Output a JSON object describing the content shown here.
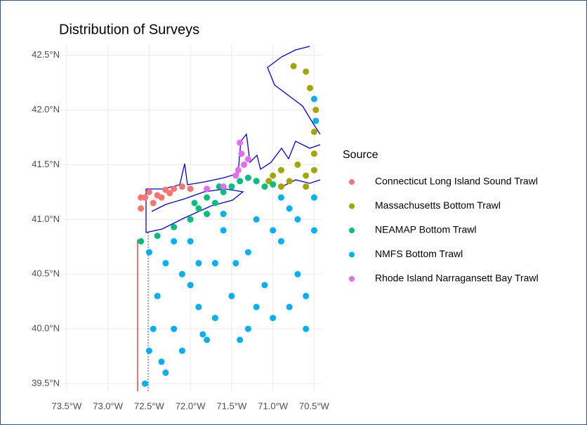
{
  "chart_data": {
    "type": "scatter",
    "title": "Distribution of Surveys",
    "legend_title": "Source",
    "legend": "right",
    "grid": true,
    "xlim": [
      -73.55,
      -70.41
    ],
    "ylim": [
      39.43,
      42.6
    ],
    "xticks": [
      {
        "value": -73.5,
        "label": "73.5°W"
      },
      {
        "value": -73.0,
        "label": "73.0°W"
      },
      {
        "value": -72.5,
        "label": "72.5°W"
      },
      {
        "value": -72.0,
        "label": "72.0°W"
      },
      {
        "value": -71.5,
        "label": "71.5°W"
      },
      {
        "value": -71.0,
        "label": "71.0°W"
      },
      {
        "value": -70.5,
        "label": "70.5°W"
      }
    ],
    "yticks": [
      {
        "value": 39.5,
        "label": "39.5°N"
      },
      {
        "value": 40.0,
        "label": "40.0°N"
      },
      {
        "value": 40.5,
        "label": "40.5°N"
      },
      {
        "value": 41.0,
        "label": "41.0°N"
      },
      {
        "value": 41.5,
        "label": "41.5°N"
      },
      {
        "value": 42.0,
        "label": "42.0°N"
      },
      {
        "value": 42.5,
        "label": "42.5°N"
      }
    ],
    "series": [
      {
        "name": "Connecticut Long Island Sound Trawl",
        "color": "#F8766D",
        "x": [
          -72.6,
          -72.55,
          -72.5,
          -72.4,
          -72.3,
          -72.2,
          -72.1,
          -72.0,
          -72.45,
          -72.35,
          -72.6,
          -72.25
        ],
        "y": [
          41.1,
          41.2,
          41.25,
          41.22,
          41.27,
          41.28,
          41.3,
          41.28,
          41.15,
          41.2,
          41.2,
          41.24
        ]
      },
      {
        "name": "Massachusetts Bottom Trawl",
        "color": "#A3A500",
        "x": [
          -71.0,
          -70.9,
          -70.8,
          -70.7,
          -70.6,
          -70.5,
          -70.5,
          -70.48,
          -70.55,
          -70.6,
          -70.75,
          -70.9,
          -70.6,
          -71.05,
          -70.5
        ],
        "y": [
          41.4,
          41.45,
          41.35,
          41.5,
          41.4,
          41.6,
          41.8,
          42.0,
          42.2,
          42.35,
          42.4,
          41.3,
          41.3,
          41.35,
          41.45
        ]
      },
      {
        "name": "NEAMAP Bottom Trawl",
        "color": "#00BF7D",
        "x": [
          -72.6,
          -72.4,
          -72.2,
          -72.0,
          -71.8,
          -71.95,
          -71.8,
          -71.7,
          -71.6,
          -71.5,
          -71.4,
          -71.3,
          -71.2,
          -71.1,
          -71.0,
          -71.9,
          -71.65
        ],
        "y": [
          40.8,
          40.85,
          40.93,
          41.0,
          41.05,
          41.15,
          41.2,
          41.15,
          41.25,
          41.3,
          41.35,
          41.38,
          41.35,
          41.3,
          41.32,
          41.1,
          41.3
        ]
      },
      {
        "name": "NMFS Bottom Trawl",
        "color": "#00B0F6",
        "x": [
          -72.5,
          -72.4,
          -72.5,
          -72.55,
          -72.3,
          -72.2,
          -72.1,
          -72.0,
          -71.9,
          -71.8,
          -71.7,
          -71.6,
          -71.5,
          -71.4,
          -71.3,
          -71.2,
          -71.1,
          -71.0,
          -70.9,
          -70.8,
          -70.7,
          -70.6,
          -70.5,
          -70.5,
          -70.48,
          -70.5,
          -70.6,
          -70.8,
          -71.0,
          -71.2,
          -71.45,
          -71.7,
          -72.0,
          -72.3,
          -72.45,
          -72.35,
          -72.1,
          -71.9,
          -71.3,
          -70.9,
          -71.6,
          -72.2,
          -70.7,
          -71.85
        ],
        "y": [
          40.7,
          40.3,
          39.8,
          39.5,
          39.6,
          40.0,
          40.5,
          40.8,
          40.2,
          39.9,
          40.6,
          40.9,
          40.3,
          39.9,
          40.7,
          41.0,
          40.4,
          40.1,
          40.8,
          41.1,
          40.5,
          40.0,
          40.9,
          41.2,
          41.9,
          42.1,
          40.3,
          40.2,
          40.9,
          40.2,
          40.6,
          40.1,
          40.4,
          40.6,
          40.0,
          39.7,
          39.8,
          40.6,
          40.0,
          41.2,
          41.05,
          40.8,
          41.0,
          39.95
        ]
      },
      {
        "name": "Rhode Island Narragansett Bay Trawl",
        "color": "#E76BF3",
        "x": [
          -71.4,
          -71.38,
          -71.35,
          -71.42,
          -71.3,
          -71.45,
          -71.6,
          -71.8
        ],
        "y": [
          41.7,
          41.6,
          41.5,
          41.45,
          41.55,
          41.4,
          41.3,
          41.28
        ]
      }
    ]
  }
}
